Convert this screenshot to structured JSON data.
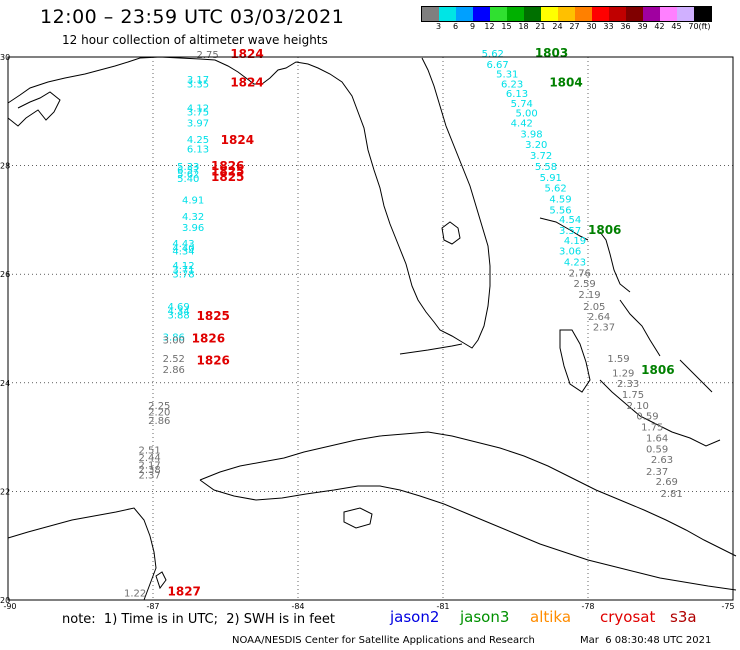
{
  "header": {
    "title": "12:00 – 23:59 UTC 03/03/2021",
    "subtitle": "12 hour collection of altimeter wave heights"
  },
  "colorbar": {
    "unit_label": "(ft)",
    "labels": [
      "3",
      "6",
      "9",
      "12",
      "15",
      "18",
      "21",
      "24",
      "27",
      "30",
      "33",
      "36",
      "39",
      "42",
      "45",
      "70"
    ],
    "colors": [
      "#7f7f7f",
      "#00e5e5",
      "#00a0ff",
      "#0000ff",
      "#30e030",
      "#00b000",
      "#007000",
      "#ffff00",
      "#ffc000",
      "#ff8000",
      "#ff0000",
      "#c00000",
      "#800000",
      "#a000a0",
      "#ff80ff",
      "#d0b0ff",
      "#000000"
    ]
  },
  "axes": {
    "lon_labels": [
      "-90",
      "-87",
      "-84",
      "-81",
      "-78",
      "-75"
    ],
    "lat_labels": [
      "30",
      "28",
      "26",
      "24",
      "22",
      "20"
    ]
  },
  "colors": {
    "cyan": "#00e0e8",
    "gray": "#707070",
    "red": "#e00000",
    "green": "#008000"
  },
  "observations": [
    {
      "v": "2.75",
      "c": "gray",
      "lon": -86.1,
      "lat": 29.98
    },
    {
      "v": "3.17",
      "c": "cyan",
      "lon": -86.3,
      "lat": 29.52
    },
    {
      "v": "3.35",
      "c": "cyan",
      "lon": -86.3,
      "lat": 29.44
    },
    {
      "v": "4.12",
      "c": "cyan",
      "lon": -86.3,
      "lat": 29.0
    },
    {
      "v": "3.75",
      "c": "cyan",
      "lon": -86.3,
      "lat": 28.92
    },
    {
      "v": "3.97",
      "c": "cyan",
      "lon": -86.3,
      "lat": 28.72
    },
    {
      "v": "4.25",
      "c": "cyan",
      "lon": -86.3,
      "lat": 28.42
    },
    {
      "v": "6.13",
      "c": "cyan",
      "lon": -86.3,
      "lat": 28.24
    },
    {
      "v": "5.33",
      "c": "cyan",
      "lon": -86.5,
      "lat": 27.92
    },
    {
      "v": "6.57",
      "c": "cyan",
      "lon": -86.5,
      "lat": 27.85
    },
    {
      "v": "5.62",
      "c": "cyan",
      "lon": -86.5,
      "lat": 27.78
    },
    {
      "v": "5.40",
      "c": "cyan",
      "lon": -86.5,
      "lat": 27.7
    },
    {
      "v": "4.91",
      "c": "cyan",
      "lon": -86.4,
      "lat": 27.3
    },
    {
      "v": "4.32",
      "c": "cyan",
      "lon": -86.4,
      "lat": 27.0
    },
    {
      "v": "3.96",
      "c": "cyan",
      "lon": -86.4,
      "lat": 26.8
    },
    {
      "v": "4.43",
      "c": "cyan",
      "lon": -86.6,
      "lat": 26.5
    },
    {
      "v": "4.40",
      "c": "cyan",
      "lon": -86.6,
      "lat": 26.42
    },
    {
      "v": "4.34",
      "c": "cyan",
      "lon": -86.6,
      "lat": 26.36
    },
    {
      "v": "4.12",
      "c": "cyan",
      "lon": -86.6,
      "lat": 26.1
    },
    {
      "v": "3.71",
      "c": "cyan",
      "lon": -86.6,
      "lat": 26.02
    },
    {
      "v": "3.78",
      "c": "cyan",
      "lon": -86.6,
      "lat": 25.94
    },
    {
      "v": "4.69",
      "c": "cyan",
      "lon": -86.7,
      "lat": 25.34
    },
    {
      "v": "4.34",
      "c": "cyan",
      "lon": -86.7,
      "lat": 25.26
    },
    {
      "v": "3.88",
      "c": "cyan",
      "lon": -86.7,
      "lat": 25.18
    },
    {
      "v": "3.86",
      "c": "cyan",
      "lon": -86.8,
      "lat": 24.78
    },
    {
      "v": "3.00",
      "c": "gray",
      "lon": -86.8,
      "lat": 24.72
    },
    {
      "v": "2.52",
      "c": "gray",
      "lon": -86.8,
      "lat": 24.38
    },
    {
      "v": "2.86",
      "c": "gray",
      "lon": -86.8,
      "lat": 24.18
    },
    {
      "v": "2.25",
      "c": "gray",
      "lon": -87.1,
      "lat": 23.52
    },
    {
      "v": "2.20",
      "c": "gray",
      "lon": -87.1,
      "lat": 23.4
    },
    {
      "v": "2.86",
      "c": "gray",
      "lon": -87.1,
      "lat": 23.24
    },
    {
      "v": "2.51",
      "c": "gray",
      "lon": -87.3,
      "lat": 22.7
    },
    {
      "v": "2.44",
      "c": "gray",
      "lon": -87.3,
      "lat": 22.56
    },
    {
      "v": "2.17",
      "c": "gray",
      "lon": -87.3,
      "lat": 22.42
    },
    {
      "v": "2.38",
      "c": "gray",
      "lon": -87.3,
      "lat": 22.34
    },
    {
      "v": "2.37",
      "c": "gray",
      "lon": -87.3,
      "lat": 22.24
    },
    {
      "v": "1.22",
      "c": "gray",
      "lon": -87.6,
      "lat": 20.06
    },
    {
      "v": "5.62",
      "c": "cyan",
      "lon": -80.2,
      "lat": 30.0
    },
    {
      "v": "6.67",
      "c": "cyan",
      "lon": -80.1,
      "lat": 29.8
    },
    {
      "v": "5.31",
      "c": "cyan",
      "lon": -79.9,
      "lat": 29.62
    },
    {
      "v": "6.23",
      "c": "cyan",
      "lon": -79.8,
      "lat": 29.44
    },
    {
      "v": "6.13",
      "c": "cyan",
      "lon": -79.7,
      "lat": 29.26
    },
    {
      "v": "5.74",
      "c": "cyan",
      "lon": -79.6,
      "lat": 29.08
    },
    {
      "v": "5.00",
      "c": "cyan",
      "lon": -79.5,
      "lat": 28.9
    },
    {
      "v": "4.42",
      "c": "cyan",
      "lon": -79.6,
      "lat": 28.72
    },
    {
      "v": "3.98",
      "c": "cyan",
      "lon": -79.4,
      "lat": 28.52
    },
    {
      "v": "3.20",
      "c": "cyan",
      "lon": -79.3,
      "lat": 28.32
    },
    {
      "v": "3.72",
      "c": "cyan",
      "lon": -79.2,
      "lat": 28.12
    },
    {
      "v": "5.58",
      "c": "cyan",
      "lon": -79.1,
      "lat": 27.92
    },
    {
      "v": "5.91",
      "c": "cyan",
      "lon": -79.0,
      "lat": 27.72
    },
    {
      "v": "5.62",
      "c": "cyan",
      "lon": -78.9,
      "lat": 27.52
    },
    {
      "v": "4.59",
      "c": "cyan",
      "lon": -78.8,
      "lat": 27.32
    },
    {
      "v": "5.56",
      "c": "cyan",
      "lon": -78.8,
      "lat": 27.12
    },
    {
      "v": "4.54",
      "c": "cyan",
      "lon": -78.6,
      "lat": 26.94
    },
    {
      "v": "3.57",
      "c": "cyan",
      "lon": -78.6,
      "lat": 26.74
    },
    {
      "v": "4.19",
      "c": "cyan",
      "lon": -78.5,
      "lat": 26.56
    },
    {
      "v": "3.06",
      "c": "cyan",
      "lon": -78.6,
      "lat": 26.36
    },
    {
      "v": "4.23",
      "c": "cyan",
      "lon": -78.5,
      "lat": 26.16
    },
    {
      "v": "2.76",
      "c": "gray",
      "lon": -78.4,
      "lat": 25.96
    },
    {
      "v": "2.59",
      "c": "gray",
      "lon": -78.3,
      "lat": 25.76
    },
    {
      "v": "2.19",
      "c": "gray",
      "lon": -78.2,
      "lat": 25.56
    },
    {
      "v": "2.05",
      "c": "gray",
      "lon": -78.1,
      "lat": 25.34
    },
    {
      "v": "2.64",
      "c": "gray",
      "lon": -78.0,
      "lat": 25.16
    },
    {
      "v": "2.37",
      "c": "gray",
      "lon": -77.9,
      "lat": 24.96
    },
    {
      "v": "1.59",
      "c": "gray",
      "lon": -77.6,
      "lat": 24.38
    },
    {
      "v": "1.29",
      "c": "gray",
      "lon": -77.5,
      "lat": 24.12
    },
    {
      "v": "2.33",
      "c": "gray",
      "lon": -77.4,
      "lat": 23.92
    },
    {
      "v": "1.75",
      "c": "gray",
      "lon": -77.3,
      "lat": 23.72
    },
    {
      "v": "2.10",
      "c": "gray",
      "lon": -77.2,
      "lat": 23.52
    },
    {
      "v": "0.59",
      "c": "gray",
      "lon": -77.0,
      "lat": 23.32
    },
    {
      "v": "1.75",
      "c": "gray",
      "lon": -76.9,
      "lat": 23.12
    },
    {
      "v": "1.64",
      "c": "gray",
      "lon": -76.8,
      "lat": 22.92
    },
    {
      "v": "0.59",
      "c": "gray",
      "lon": -76.8,
      "lat": 22.72
    },
    {
      "v": "2.63",
      "c": "gray",
      "lon": -76.7,
      "lat": 22.52
    },
    {
      "v": "2.37",
      "c": "gray",
      "lon": -76.8,
      "lat": 22.3
    },
    {
      "v": "2.69",
      "c": "gray",
      "lon": -76.6,
      "lat": 22.12
    },
    {
      "v": "2.81",
      "c": "gray",
      "lon": -76.5,
      "lat": 21.9
    }
  ],
  "pass_times": [
    {
      "t": "1824",
      "c": "red",
      "lon": -85.4,
      "lat": 29.98
    },
    {
      "t": "1824",
      "c": "red",
      "lon": -85.4,
      "lat": 29.46
    },
    {
      "t": "1824",
      "c": "red",
      "lon": -85.6,
      "lat": 28.4
    },
    {
      "t": "1826",
      "c": "red",
      "lon": -85.8,
      "lat": 27.92
    },
    {
      "t": "1825",
      "c": "red",
      "lon": -85.8,
      "lat": 27.82
    },
    {
      "t": "1825",
      "c": "red",
      "lon": -85.8,
      "lat": 27.72
    },
    {
      "t": "1825",
      "c": "red",
      "lon": -86.1,
      "lat": 25.16
    },
    {
      "t": "1826",
      "c": "red",
      "lon": -86.2,
      "lat": 24.74
    },
    {
      "t": "1826",
      "c": "red",
      "lon": -86.1,
      "lat": 24.34
    },
    {
      "t": "1827",
      "c": "red",
      "lon": -86.7,
      "lat": 20.08
    },
    {
      "t": "1803",
      "c": "green",
      "lon": -79.1,
      "lat": 30.0
    },
    {
      "t": "1804",
      "c": "green",
      "lon": -78.8,
      "lat": 29.46
    },
    {
      "t": "1806",
      "c": "green",
      "lon": -78.0,
      "lat": 26.74
    },
    {
      "t": "1806",
      "c": "green",
      "lon": -76.9,
      "lat": 24.16
    }
  ],
  "footer": {
    "note": "note:  1) Time is in UTC;  2) SWH is in feet",
    "satellites": [
      {
        "name": "jason2",
        "color": "#0000e0"
      },
      {
        "name": "jason3",
        "color": "#009000"
      },
      {
        "name": "altika",
        "color": "#ff8c00"
      },
      {
        "name": "cryosat",
        "color": "#e00000"
      },
      {
        "name": "s3a",
        "color": "#b00000"
      }
    ],
    "credit": "NOAA/NESDIS Center for Satellite Applications and Research",
    "date": "Mar  6 08:30:48 UTC 2021"
  }
}
